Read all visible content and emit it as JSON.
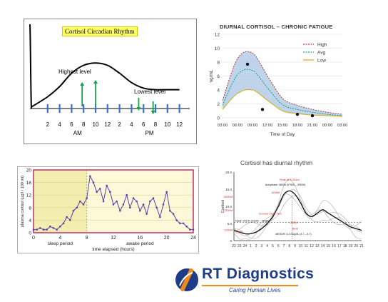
{
  "chart_data": [
    {
      "type": "line",
      "title": "Cortisol Circadian Rhythm",
      "x": [
        2,
        4,
        6,
        8,
        10,
        12,
        2,
        4,
        6,
        8,
        10,
        12
      ],
      "tick_labels": [
        "2",
        "4",
        "6",
        "8",
        "10",
        "12",
        "2",
        "4",
        "6",
        "8",
        "10",
        "12"
      ],
      "period_labels": [
        "AM",
        "PM"
      ],
      "annotations": [
        "Highest level",
        "Lowest level"
      ],
      "series": [
        {
          "values": [
            0.15,
            0.28,
            0.45,
            0.55,
            0.58,
            0.55,
            0.45,
            0.33,
            0.26,
            0.24,
            0.24,
            0.24
          ]
        }
      ]
    },
    {
      "type": "area",
      "title": "DIURNAL CORTISOL – CHRONIC FATIGUE",
      "xlabel": "Time of Day",
      "ylabel": "ng/mL",
      "categories": [
        "03:00",
        "06:00",
        "09:00",
        "12:00",
        "15:00",
        "18:00",
        "21:00",
        "00:00",
        "03:00"
      ],
      "ylim": [
        0,
        12
      ],
      "yticks": [
        0,
        2,
        4,
        6,
        8,
        10,
        12
      ],
      "legend": "top-right",
      "series": [
        {
          "name": "High",
          "color": "#c0392b",
          "values": [
            2.5,
            8.5,
            9.3,
            6.0,
            2.8,
            1.8,
            1.2,
            0.8,
            0.5
          ]
        },
        {
          "name": "Avg",
          "color": "#16a085",
          "values": [
            1.8,
            6.2,
            6.8,
            4.3,
            1.9,
            1.2,
            0.8,
            0.5,
            0.3
          ]
        },
        {
          "name": "Low",
          "color": "#d4ac0d",
          "values": [
            1.2,
            3.5,
            4.0,
            2.5,
            1.0,
            0.6,
            0.4,
            0.3,
            0.2
          ]
        }
      ],
      "points": [
        {
          "x": "08:00",
          "y": 7.7
        },
        {
          "x": "11:00",
          "y": 1.2
        },
        {
          "x": "18:00",
          "y": 0.5
        },
        {
          "x": "21:00",
          "y": 0.3
        }
      ]
    },
    {
      "type": "line",
      "xlabel": "time elapsed (hours)",
      "ylabel": "plasma cortisol (µg/l / 100 ml)",
      "xlim": [
        0,
        24
      ],
      "ylim": [
        0,
        20
      ],
      "xticks": [
        0,
        4,
        8,
        12,
        16,
        20,
        24
      ],
      "yticks": [
        0,
        4,
        8,
        12,
        16,
        20
      ],
      "period_labels": [
        "sleep period",
        "awake period"
      ],
      "x": [
        0,
        0.5,
        1,
        1.5,
        2,
        2.5,
        3,
        3.5,
        4,
        4.5,
        5,
        5.5,
        6,
        6.5,
        7,
        7.5,
        8,
        8.5,
        9,
        9.5,
        10,
        10.5,
        11,
        11.5,
        12,
        12.5,
        13,
        13.5,
        14,
        14.5,
        15,
        15.5,
        16,
        16.5,
        17,
        17.5,
        18,
        18.5,
        19,
        19.5,
        20,
        20.5,
        21,
        21.5,
        22,
        22.5,
        23,
        23.5,
        24
      ],
      "series": [
        {
          "values": [
            1,
            1,
            1.5,
            1,
            1,
            2,
            1.5,
            1,
            2,
            3,
            5,
            4,
            7,
            8,
            10,
            9,
            11,
            18,
            16,
            13,
            14,
            10,
            15,
            13,
            9,
            10,
            7,
            9,
            12,
            8,
            11,
            10,
            7,
            9,
            6,
            10,
            11,
            8,
            5,
            9,
            13,
            7,
            6,
            4,
            3,
            3,
            2,
            1,
            1
          ]
        }
      ]
    },
    {
      "type": "line",
      "title": "Cortisol has diurnal rhythm",
      "ylabel": "Cortisol",
      "categories": [
        "22",
        "23",
        "24",
        "1",
        "2",
        "3",
        "4",
        "5",
        "6",
        "7",
        "8",
        "9",
        "10",
        "11",
        "12",
        "13",
        "14",
        "15",
        "16",
        "17",
        "18",
        "19",
        "20",
        "21"
      ],
      "yticks": [
        "0",
        "5.0",
        "10.0",
        "15.0",
        "20.0"
      ],
      "ylim": [
        0,
        20
      ],
      "annotations": [
        "Peak at 8.32am",
        "Acrophase: 0833h (0759h – 0903h)",
        "625NM",
        "500NM",
        "330NM",
        "Increase starts 5am",
        "Nadir: 0010h (2339h – 0038h)",
        "55NM",
        "MESOR: 5.3 mcg/dL (4.7 – 5.7)",
        "138NM",
        "BEIN",
        "125NM"
      ],
      "series": [
        {
          "values": [
            3,
            2.5,
            2,
            2,
            2.5,
            3.5,
            5,
            7,
            10,
            13.5,
            14.5,
            13.5,
            11,
            8,
            7,
            8,
            9,
            8,
            7,
            6,
            5,
            4,
            3.5,
            3
          ]
        }
      ]
    }
  ],
  "logo": {
    "text": "RT Diagnostics",
    "tagline": "Caring Human Lives"
  }
}
